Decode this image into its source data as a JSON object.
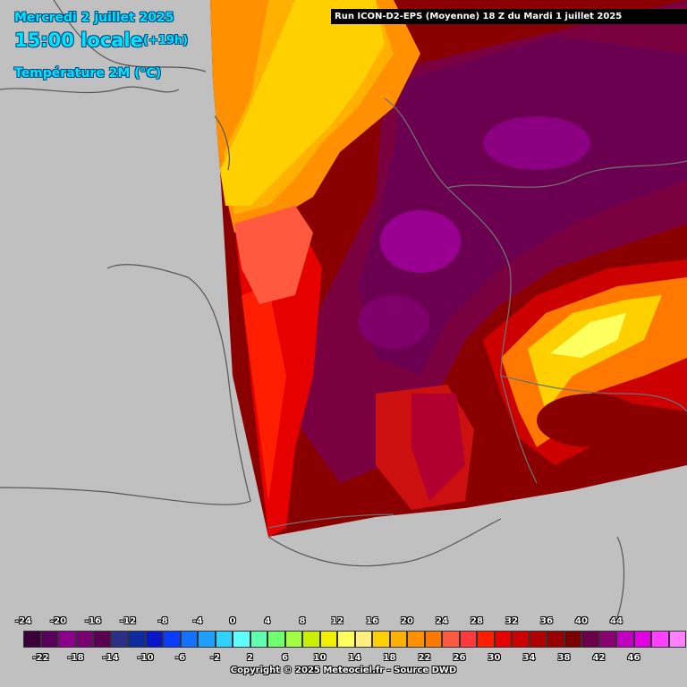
{
  "header": {
    "date": "Mercredi 2 juillet 2025",
    "time": "15:00 locale",
    "lead": "(+19h)",
    "parameter": "Température 2M (°C)"
  },
  "run_banner": "Run ICON-D2-EPS (Moyenne) 18 Z du Mardi 1 juillet 2025",
  "copyright": "Copyright © 2025 Meteociel.fr - Source DWD",
  "legend": {
    "labels_top": [
      "-24",
      "-20",
      "-16",
      "-12",
      "-8",
      "-4",
      "0",
      "4",
      "8",
      "12",
      "16",
      "20",
      "24",
      "28",
      "32",
      "36",
      "40",
      "44"
    ],
    "labels_bottom": [
      "-22",
      "-18",
      "-14",
      "-10",
      "-6",
      "-2",
      "2",
      "6",
      "10",
      "14",
      "18",
      "22",
      "26",
      "30",
      "34",
      "38",
      "42",
      "46"
    ],
    "colors": [
      "#3a0038",
      "#58005c",
      "#8c008c",
      "#780070",
      "#5a0050",
      "#2b2f88",
      "#0f2a9e",
      "#0a14c8",
      "#0a3cff",
      "#1470ff",
      "#1ea0ff",
      "#30d0ff",
      "#60ffff",
      "#60ffb0",
      "#70ff70",
      "#a0ff40",
      "#c8f000",
      "#f0f000",
      "#ffff60",
      "#ffee80",
      "#ffd000",
      "#ffb000",
      "#ff9000",
      "#ff7800",
      "#ff5a40",
      "#ff3a3a",
      "#ff1e00",
      "#e60000",
      "#cc0000",
      "#b00000",
      "#980000",
      "#7a0000",
      "#6a0048",
      "#8a0070",
      "#c000c0",
      "#e000e0",
      "#ff40ff",
      "#ff80ff"
    ]
  }
}
